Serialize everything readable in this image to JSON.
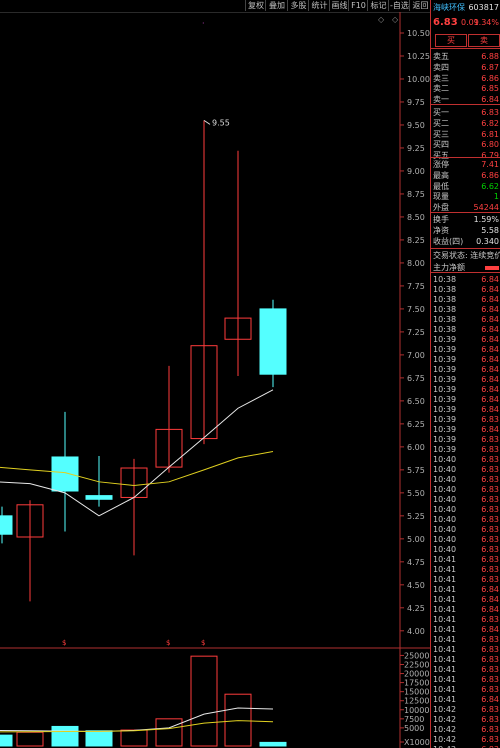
{
  "toolbar": [
    "复权",
    "叠加",
    "多股",
    "统计",
    "画线",
    "F10",
    "标记",
    "-自选",
    "返回"
  ],
  "stock": {
    "name": "海峡环保",
    "code": "603817",
    "price": "6.83",
    "change": "0.09",
    "pct": "1.34%"
  },
  "trade_buttons": {
    "buy": "买",
    "sell": "卖"
  },
  "order_book": [
    {
      "label": "卖五",
      "price": "6.88"
    },
    {
      "label": "卖四",
      "price": "6.87"
    },
    {
      "label": "卖三",
      "price": "6.86"
    },
    {
      "label": "卖二",
      "price": "6.85"
    },
    {
      "label": "卖一",
      "price": "6.84"
    },
    {
      "label": "买一",
      "price": "6.83"
    },
    {
      "label": "买二",
      "price": "6.82"
    },
    {
      "label": "买三",
      "price": "6.81"
    },
    {
      "label": "买四",
      "price": "6.80"
    },
    {
      "label": "买五",
      "price": "6.79"
    }
  ],
  "stats": [
    {
      "label": "涨停",
      "value": "7.41",
      "color": "red"
    },
    {
      "label": "最高",
      "value": "6.86",
      "color": "red"
    },
    {
      "label": "最低",
      "value": "6.62",
      "color": "green"
    },
    {
      "label": "现量",
      "value": "1",
      "color": "green"
    },
    {
      "label": "外盘",
      "value": "54244",
      "color": "red"
    }
  ],
  "stats2": [
    {
      "label": "换手",
      "value": "1.59%",
      "color": "white"
    },
    {
      "label": "净资",
      "value": "5.58",
      "color": "white"
    },
    {
      "label": "收益(四)",
      "value": "0.340",
      "color": "white"
    }
  ],
  "status": {
    "text": "交易状态: 连续竞价",
    "main_flow": "主力净额"
  },
  "ticks": [
    {
      "t": "10:38",
      "p": "6.84"
    },
    {
      "t": "10:38",
      "p": "6.84"
    },
    {
      "t": "10:38",
      "p": "6.84"
    },
    {
      "t": "10:38",
      "p": "6.84"
    },
    {
      "t": "10:38",
      "p": "6.84"
    },
    {
      "t": "10:38",
      "p": "6.84"
    },
    {
      "t": "10:39",
      "p": "6.84"
    },
    {
      "t": "10:39",
      "p": "6.84"
    },
    {
      "t": "10:39",
      "p": "6.84"
    },
    {
      "t": "10:39",
      "p": "6.84"
    },
    {
      "t": "10:39",
      "p": "6.84"
    },
    {
      "t": "10:39",
      "p": "6.84"
    },
    {
      "t": "10:39",
      "p": "6.84"
    },
    {
      "t": "10:39",
      "p": "6.84"
    },
    {
      "t": "10:39",
      "p": "6.83"
    },
    {
      "t": "10:39",
      "p": "6.84"
    },
    {
      "t": "10:39",
      "p": "6.83"
    },
    {
      "t": "10:39",
      "p": "6.83"
    },
    {
      "t": "10:40",
      "p": "6.83"
    },
    {
      "t": "10:40",
      "p": "6.83"
    },
    {
      "t": "10:40",
      "p": "6.83"
    },
    {
      "t": "10:40",
      "p": "6.83"
    },
    {
      "t": "10:40",
      "p": "6.83"
    },
    {
      "t": "10:40",
      "p": "6.83"
    },
    {
      "t": "10:40",
      "p": "6.83"
    },
    {
      "t": "10:40",
      "p": "6.83"
    },
    {
      "t": "10:40",
      "p": "6.83"
    },
    {
      "t": "10:40",
      "p": "6.83"
    },
    {
      "t": "10:41",
      "p": "6.83"
    },
    {
      "t": "10:41",
      "p": "6.83"
    },
    {
      "t": "10:41",
      "p": "6.83"
    },
    {
      "t": "10:41",
      "p": "6.84"
    },
    {
      "t": "10:41",
      "p": "6.84"
    },
    {
      "t": "10:41",
      "p": "6.84"
    },
    {
      "t": "10:41",
      "p": "6.83"
    },
    {
      "t": "10:41",
      "p": "6.84"
    },
    {
      "t": "10:41",
      "p": "6.83"
    },
    {
      "t": "10:41",
      "p": "6.83"
    },
    {
      "t": "10:41",
      "p": "6.83"
    },
    {
      "t": "10:41",
      "p": "6.83"
    },
    {
      "t": "10:41",
      "p": "6.83"
    },
    {
      "t": "10:41",
      "p": "6.83"
    },
    {
      "t": "10:41",
      "p": "6.84"
    },
    {
      "t": "10:42",
      "p": "6.83"
    },
    {
      "t": "10:42",
      "p": "6.83"
    },
    {
      "t": "10:42",
      "p": "6.83"
    },
    {
      "t": "10:42",
      "p": "6.83"
    },
    {
      "t": "10:42",
      "p": "6.83"
    }
  ],
  "chart_data": {
    "type": "candlestick",
    "price_ylim": [
      3.9,
      10.75
    ],
    "price_ticks": [
      "10.50",
      "10.25",
      "10.00",
      "9.75",
      "9.50",
      "9.25",
      "9.00",
      "8.75",
      "8.50",
      "8.25",
      "8.00",
      "7.75",
      "7.50",
      "7.25",
      "7.00",
      "6.75",
      "6.50",
      "6.25",
      "6.00",
      "5.75",
      "5.50",
      "5.25",
      "5.00",
      "4.75",
      "4.50",
      "4.25",
      "4.00"
    ],
    "max_label": "9.55",
    "candles": [
      {
        "o": 5.05,
        "h": 5.35,
        "l": 4.95,
        "c": 5.25,
        "up": false
      },
      {
        "o": 5.02,
        "h": 5.42,
        "l": 4.32,
        "c": 5.37,
        "up": true
      },
      {
        "o": 5.52,
        "h": 6.38,
        "l": 5.08,
        "c": 5.89,
        "up": false
      },
      {
        "o": 5.47,
        "h": 5.9,
        "l": 5.35,
        "c": 5.43,
        "up": false
      },
      {
        "o": 5.45,
        "h": 5.87,
        "l": 4.82,
        "c": 5.77,
        "up": true
      },
      {
        "o": 5.78,
        "h": 6.88,
        "l": 5.72,
        "c": 6.19,
        "up": true
      },
      {
        "o": 6.09,
        "h": 9.55,
        "l": 6.03,
        "c": 7.1,
        "up": true
      },
      {
        "o": 7.17,
        "h": 9.22,
        "l": 6.77,
        "c": 7.4,
        "up": true
      },
      {
        "o": 7.5,
        "h": 7.6,
        "l": 6.65,
        "c": 6.79,
        "up": false
      }
    ],
    "ma_white": [
      5.62,
      5.6,
      5.5,
      5.25,
      5.45,
      5.78,
      6.1,
      6.42,
      6.62
    ],
    "ma_yellow": [
      5.78,
      5.75,
      5.72,
      5.62,
      5.58,
      5.62,
      5.75,
      5.88,
      5.95
    ],
    "markers": [
      "$",
      "$",
      "$"
    ],
    "vol_ylim": [
      0,
      26500
    ],
    "vol_ticks": [
      "25000",
      "22500",
      "20000",
      "17500",
      "15000",
      "12500",
      "10000",
      "7500",
      "5000",
      "X1000"
    ],
    "volumes": [
      {
        "v": 3000,
        "up": false
      },
      {
        "v": 3800,
        "up": true
      },
      {
        "v": 5400,
        "up": false
      },
      {
        "v": 4200,
        "up": false
      },
      {
        "v": 4400,
        "up": true
      },
      {
        "v": 7500,
        "up": true
      },
      {
        "v": 24800,
        "up": true
      },
      {
        "v": 14300,
        "up": true
      },
      {
        "v": 1000,
        "up": false
      }
    ],
    "vol_ma_white": [
      4300,
      4200,
      4100,
      4000,
      4300,
      5000,
      8800,
      10500,
      10200
    ],
    "vol_ma_yellow": [
      3900,
      3950,
      4000,
      4050,
      4200,
      4800,
      6300,
      7000,
      6700
    ]
  }
}
